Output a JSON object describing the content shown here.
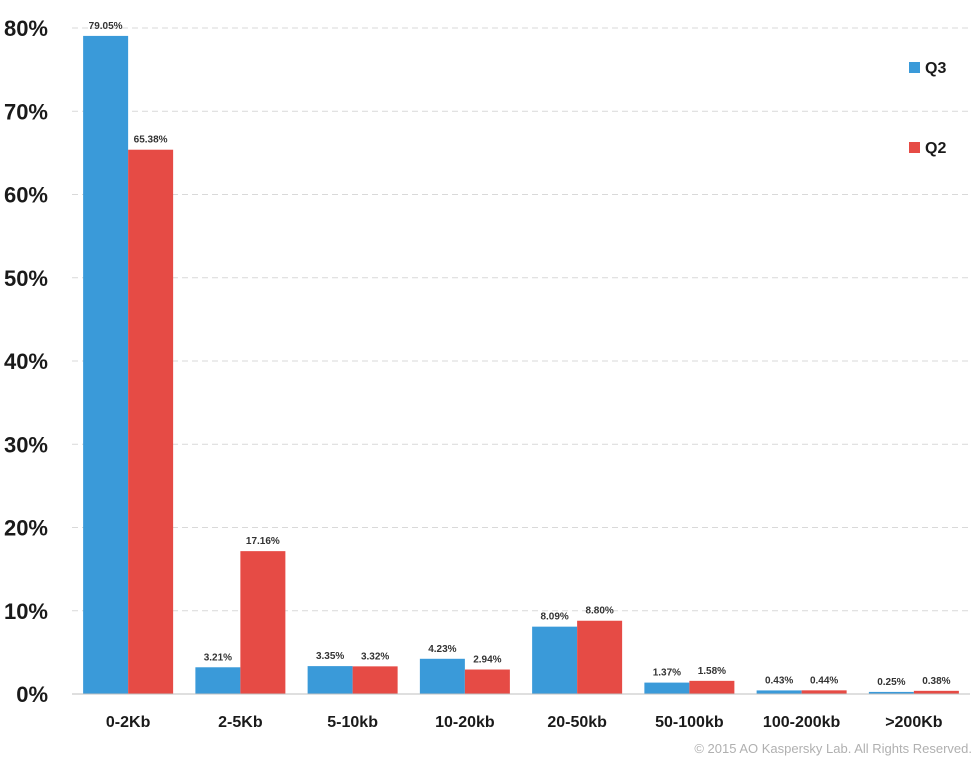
{
  "chart_data": {
    "type": "bar",
    "categories": [
      "0-2Kb",
      "2-5Kb",
      "5-10kb",
      "10-20kb",
      "20-50kb",
      "50-100kb",
      "100-200kb",
      ">200Kb"
    ],
    "series": [
      {
        "name": "Q3",
        "color": "#3a9ad9",
        "values": [
          79.05,
          3.21,
          3.35,
          4.23,
          8.09,
          1.37,
          0.43,
          0.25
        ],
        "labels": [
          "79.05%",
          "3.21%",
          "3.35%",
          "4.23%",
          "8.09%",
          "1.37%",
          "0.43%",
          "0.25%"
        ]
      },
      {
        "name": "Q2",
        "color": "#e64b45",
        "values": [
          65.38,
          17.16,
          3.32,
          2.94,
          8.8,
          1.58,
          0.44,
          0.38
        ],
        "labels": [
          "65.38%",
          "17.16%",
          "3.32%",
          "2.94%",
          "8.80%",
          "1.58%",
          "0.44%",
          "0.38%"
        ]
      }
    ],
    "yticks": [
      "0%",
      "10%",
      "20%",
      "30%",
      "40%",
      "50%",
      "60%",
      "70%",
      "80%"
    ],
    "ylim": [
      0,
      80
    ],
    "grid": true,
    "legend_position": "top-right"
  },
  "footer": "© 2015 AO Kaspersky Lab. All Rights Reserved."
}
